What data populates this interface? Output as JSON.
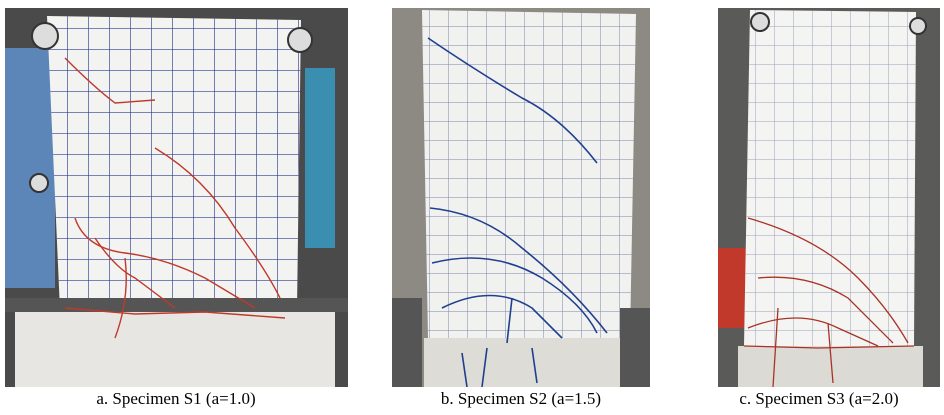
{
  "captions": [
    "a. Specimen S1 (a=1.0)",
    "b. Specimen S2 (a=1.5)",
    "c. Specimen S3 (a=2.0)"
  ]
}
